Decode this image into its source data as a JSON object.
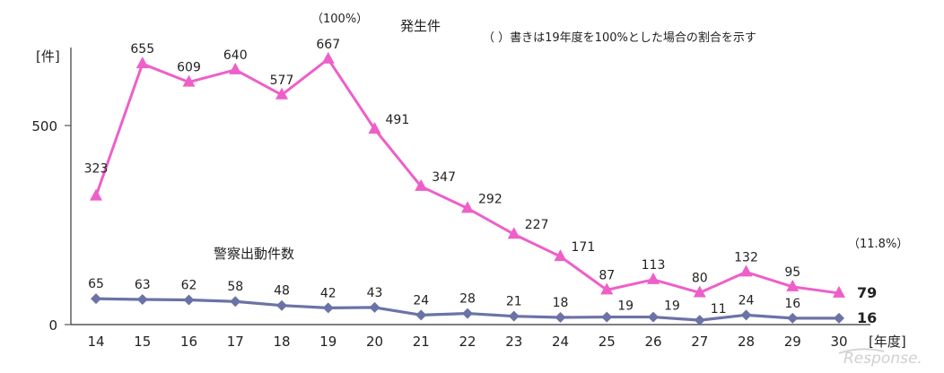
{
  "chart_data": {
    "type": "line",
    "categories": [
      "14",
      "15",
      "16",
      "17",
      "18",
      "19",
      "20",
      "21",
      "22",
      "23",
      "24",
      "25",
      "26",
      "27",
      "28",
      "29",
      "30"
    ],
    "series": [
      {
        "name": "発生件",
        "color": "#ee5fc9",
        "marker": "triangle",
        "values": [
          323,
          655,
          609,
          640,
          577,
          667,
          491,
          347,
          292,
          227,
          171,
          87,
          113,
          80,
          132,
          95,
          79
        ]
      },
      {
        "name": "警察出動件数",
        "color": "#6b73a6",
        "marker": "diamond",
        "values": [
          65,
          63,
          62,
          58,
          48,
          42,
          43,
          24,
          28,
          21,
          18,
          19,
          19,
          11,
          24,
          16,
          16
        ]
      }
    ],
    "ylim": [
      0,
      900
    ],
    "yticks": [
      "0",
      "500"
    ],
    "y_unit": "[件]",
    "x_unit": "[年度]",
    "annotations": {
      "base_pct": "（100%）",
      "last_pct": "（11.8%）",
      "note": "（ ）書きは19年度を100%とした場合の割合を示す"
    },
    "watermark": "Response."
  }
}
